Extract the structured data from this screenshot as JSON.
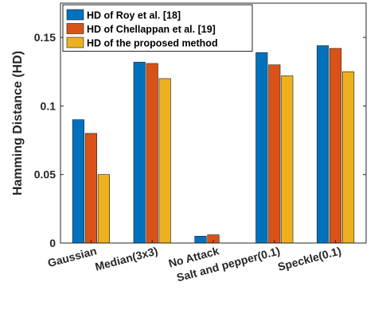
{
  "chart_data": {
    "type": "bar",
    "title": "",
    "xlabel": "",
    "ylabel": "Hamming Distance (HD)",
    "ylim": [
      0,
      0.175
    ],
    "yticks": [
      0,
      0.05,
      0.1,
      0.15
    ],
    "ytick_labels": [
      "0",
      "0.05",
      "0.1",
      "0.15"
    ],
    "grid": false,
    "legend_position": "top-left",
    "categories": [
      "Gaussian",
      "Median(3x3)",
      "No Attack",
      "Salt and pepper(0.1)",
      "Speckle(0.1)"
    ],
    "series": [
      {
        "name": "HD of Roy et al. [18]",
        "color": "#0072BD",
        "values": [
          0.09,
          0.132,
          0.005,
          0.139,
          0.144
        ]
      },
      {
        "name": "HD of Chellappan et al. [19]",
        "color": "#D95319",
        "values": [
          0.08,
          0.131,
          0.006,
          0.13,
          0.142
        ]
      },
      {
        "name": "HD of the proposed method",
        "color": "#EDB120",
        "values": [
          0.05,
          0.12,
          0.0,
          0.122,
          0.125
        ]
      }
    ]
  }
}
